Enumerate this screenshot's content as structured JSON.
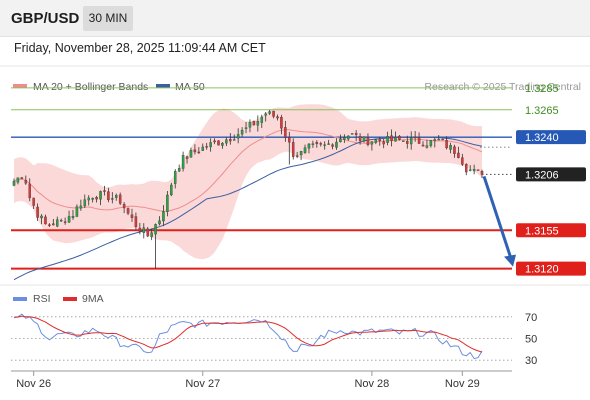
{
  "header": {
    "symbol": "GBP/USD",
    "timeframe": "30 MIN"
  },
  "datetime": "Friday, November 28, 2025 11:09:44 AM CET",
  "colors": {
    "candle_up": "#2ea043",
    "candle_down": "#d83a3a",
    "candle_wick": "#333333",
    "band_fill": "#fbd9d9",
    "ma20": "#f08c8c",
    "ma50": "#3b5fa3",
    "target_line": "#8cc05a",
    "pivot_line": "#2659b5",
    "support_line": "#e0201b",
    "forecast_arrow": "#2f62b3",
    "rsi": "#6a8fe0",
    "rsi_ma": "#e02c2c"
  },
  "legend": {
    "ma20_label": "MA 20 + Bollinger Bands",
    "ma50_label": "MA 50",
    "credit": "Research © 2025 Trading Central"
  },
  "rsi_legend": {
    "rsi_label": "RSI",
    "ma_label": "9MA"
  },
  "chart_data": {
    "type": "candlestick",
    "ylim": [
      1.3105,
      1.3305
    ],
    "x_ticks": [
      "Nov 26",
      "Nov 27",
      "Nov 28",
      "Nov 29"
    ],
    "price_levels": [
      {
        "label": "1.3285",
        "value": 1.3285,
        "kind": "target",
        "bold": false
      },
      {
        "label": "1.3265",
        "value": 1.3265,
        "kind": "target",
        "bold": false
      },
      {
        "label": "1.3240",
        "value": 1.324,
        "kind": "pivot",
        "bold": true
      },
      {
        "label": "1.3206",
        "value": 1.3206,
        "kind": "last",
        "bold": true
      },
      {
        "label": "1.3155",
        "value": 1.3155,
        "kind": "support",
        "bold": true
      },
      {
        "label": "1.3120",
        "value": 1.312,
        "kind": "support",
        "bold": true
      }
    ],
    "close_anchors": [
      [
        0,
        1.32
      ],
      [
        2,
        1.3205
      ],
      [
        3,
        1.32
      ],
      [
        4,
        1.3185
      ],
      [
        6,
        1.317
      ],
      [
        8,
        1.316
      ],
      [
        12,
        1.3163
      ],
      [
        15,
        1.317
      ],
      [
        17,
        1.318
      ],
      [
        20,
        1.3187
      ],
      [
        23,
        1.3187
      ],
      [
        27,
        1.3182
      ],
      [
        29,
        1.317
      ],
      [
        31,
        1.316
      ],
      [
        34,
        1.315
      ],
      [
        37,
        1.3165
      ],
      [
        39,
        1.3185
      ],
      [
        41,
        1.321
      ],
      [
        43,
        1.322
      ],
      [
        45,
        1.3225
      ],
      [
        49,
        1.3232
      ],
      [
        54,
        1.3238
      ],
      [
        58,
        1.3245
      ],
      [
        62,
        1.3255
      ],
      [
        64,
        1.3262
      ],
      [
        67,
        1.3258
      ],
      [
        69,
        1.3242
      ],
      [
        71,
        1.3225
      ],
      [
        73,
        1.3225
      ],
      [
        75,
        1.323
      ],
      [
        79,
        1.3232
      ],
      [
        82,
        1.3237
      ],
      [
        84,
        1.3242
      ],
      [
        86,
        1.3242
      ],
      [
        89,
        1.3237
      ],
      [
        93,
        1.3237
      ],
      [
        97,
        1.3237
      ],
      [
        101,
        1.3237
      ],
      [
        105,
        1.3235
      ],
      [
        108,
        1.3237
      ],
      [
        111,
        1.323
      ],
      [
        113,
        1.3225
      ],
      [
        115,
        1.3212
      ],
      [
        117,
        1.3208
      ],
      [
        119,
        1.3206
      ]
    ],
    "spikes": [
      {
        "index": 36,
        "low": 1.312
      },
      {
        "index": 70,
        "low": 1.3215
      }
    ],
    "rsi_ylim": [
      20,
      80
    ],
    "rsi_levels": [
      70,
      50,
      30
    ],
    "rsi_anchors": [
      [
        0,
        68
      ],
      [
        3,
        70
      ],
      [
        6,
        62
      ],
      [
        9,
        50
      ],
      [
        12,
        54
      ],
      [
        15,
        52
      ],
      [
        18,
        56
      ],
      [
        21,
        58
      ],
      [
        24,
        52
      ],
      [
        27,
        46
      ],
      [
        30,
        42
      ],
      [
        33,
        40
      ],
      [
        35,
        36
      ],
      [
        37,
        52
      ],
      [
        40,
        60
      ],
      [
        43,
        64
      ],
      [
        47,
        63
      ],
      [
        51,
        65
      ],
      [
        55,
        66
      ],
      [
        59,
        67
      ],
      [
        63,
        68
      ],
      [
        66,
        60
      ],
      [
        69,
        48
      ],
      [
        71,
        38
      ],
      [
        73,
        44
      ],
      [
        75,
        40
      ],
      [
        78,
        52
      ],
      [
        81,
        56
      ],
      [
        84,
        58
      ],
      [
        87,
        55
      ],
      [
        90,
        56
      ],
      [
        94,
        57
      ],
      [
        98,
        55
      ],
      [
        102,
        56
      ],
      [
        106,
        54
      ],
      [
        110,
        46
      ],
      [
        113,
        40
      ],
      [
        115,
        36
      ],
      [
        117,
        34
      ],
      [
        119,
        36
      ]
    ]
  }
}
